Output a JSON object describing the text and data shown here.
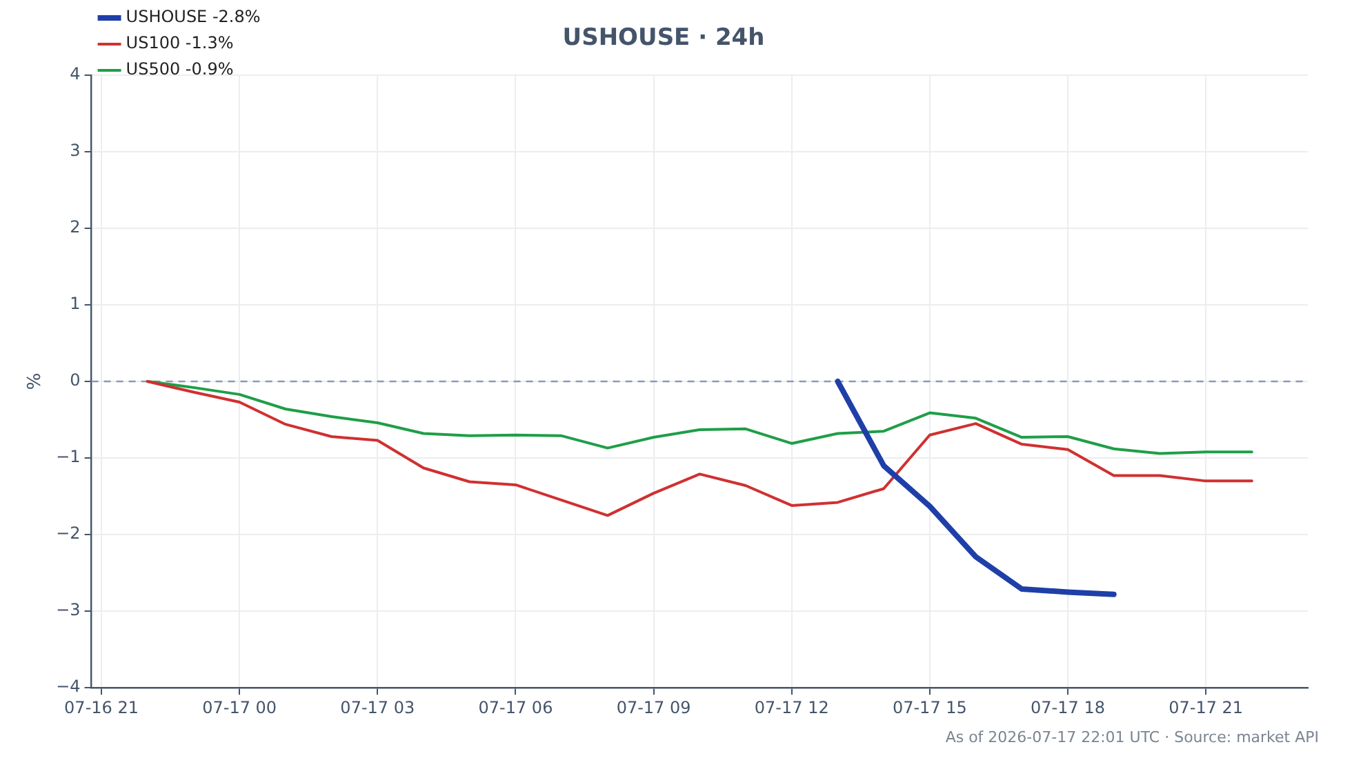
{
  "chart_data": {
    "type": "line",
    "title": "USHOUSE · 24h",
    "ylabel": "%",
    "xlim": [
      "2026-07-16T20:47",
      "2026-07-17T23:13"
    ],
    "xticks": [
      {
        "value": "2026-07-16T21:00",
        "label": "07-16 21"
      },
      {
        "value": "2026-07-17T00:00",
        "label": "07-17 00"
      },
      {
        "value": "2026-07-17T03:00",
        "label": "07-17 03"
      },
      {
        "value": "2026-07-17T06:00",
        "label": "07-17 06"
      },
      {
        "value": "2026-07-17T09:00",
        "label": "07-17 09"
      },
      {
        "value": "2026-07-17T12:00",
        "label": "07-17 12"
      },
      {
        "value": "2026-07-17T15:00",
        "label": "07-17 15"
      },
      {
        "value": "2026-07-17T18:00",
        "label": "07-17 18"
      },
      {
        "value": "2026-07-17T21:00",
        "label": "07-17 21"
      }
    ],
    "ylim": [
      -4,
      4
    ],
    "yticks": [
      {
        "value": -4,
        "label": "−4"
      },
      {
        "value": -3,
        "label": "−3"
      },
      {
        "value": -2,
        "label": "−2"
      },
      {
        "value": -1,
        "label": "−1"
      },
      0,
      1,
      2,
      3,
      4
    ],
    "series": [
      {
        "name": "USHOUSE -2.8%",
        "color": "#1f3fa8",
        "x": [
          "2026-07-17T13:00",
          "2026-07-17T14:00",
          "2026-07-17T15:00",
          "2026-07-17T16:00",
          "2026-07-17T17:00",
          "2026-07-17T18:00",
          "2026-07-17T19:00"
        ],
        "values": [
          0,
          -1.1,
          -1.63,
          -2.29,
          -2.71,
          -2.75,
          -2.78
        ]
      },
      {
        "name": "US100 -1.3%",
        "color": "#d03030",
        "x": [
          "2026-07-16T22:00",
          "2026-07-16T23:00",
          "2026-07-17T00:00",
          "2026-07-17T01:00",
          "2026-07-17T02:00",
          "2026-07-17T03:00",
          "2026-07-17T04:00",
          "2026-07-17T05:00",
          "2026-07-17T06:00",
          "2026-07-17T07:00",
          "2026-07-17T08:00",
          "2026-07-17T09:00",
          "2026-07-17T10:00",
          "2026-07-17T11:00",
          "2026-07-17T12:00",
          "2026-07-17T13:00",
          "2026-07-17T14:00",
          "2026-07-17T15:00",
          "2026-07-17T16:00",
          "2026-07-17T17:00",
          "2026-07-17T18:00",
          "2026-07-17T19:00",
          "2026-07-17T20:00",
          "2026-07-17T21:00",
          "2026-07-17T22:00"
        ],
        "values": [
          0,
          -0.14,
          -0.27,
          -0.56,
          -0.72,
          -0.77,
          -1.13,
          -1.31,
          -1.35,
          -1.55,
          -1.75,
          -1.46,
          -1.21,
          -1.36,
          -1.62,
          -1.58,
          -1.4,
          -0.7,
          -0.55,
          -0.82,
          -0.89,
          -1.23,
          -1.23,
          -1.3,
          -1.3
        ]
      },
      {
        "name": "US500 -0.9%",
        "color": "#1f9e48",
        "x": [
          "2026-07-16T22:00",
          "2026-07-16T23:00",
          "2026-07-17T00:00",
          "2026-07-17T01:00",
          "2026-07-17T02:00",
          "2026-07-17T03:00",
          "2026-07-17T04:00",
          "2026-07-17T05:00",
          "2026-07-17T06:00",
          "2026-07-17T07:00",
          "2026-07-17T08:00",
          "2026-07-17T09:00",
          "2026-07-17T10:00",
          "2026-07-17T11:00",
          "2026-07-17T12:00",
          "2026-07-17T13:00",
          "2026-07-17T14:00",
          "2026-07-17T15:00",
          "2026-07-17T16:00",
          "2026-07-17T17:00",
          "2026-07-17T18:00",
          "2026-07-17T19:00",
          "2026-07-17T20:00",
          "2026-07-17T21:00",
          "2026-07-17T22:00"
        ],
        "values": [
          0,
          -0.08,
          -0.17,
          -0.36,
          -0.46,
          -0.54,
          -0.68,
          -0.71,
          -0.7,
          -0.71,
          -0.87,
          -0.73,
          -0.63,
          -0.62,
          -0.81,
          -0.68,
          -0.65,
          -0.41,
          -0.48,
          -0.73,
          -0.72,
          -0.88,
          -0.94,
          -0.92,
          -0.92
        ]
      }
    ],
    "ref_lines": [
      {
        "axis": "y",
        "value": 0,
        "color": "#8a9ab5",
        "line_style": "dashed"
      }
    ],
    "annotations": [
      "As of 2026-07-17 22:01 UTC · Source: market API"
    ],
    "grid": true,
    "legend": "top left",
    "marker": "none",
    "line_style": "solid"
  }
}
